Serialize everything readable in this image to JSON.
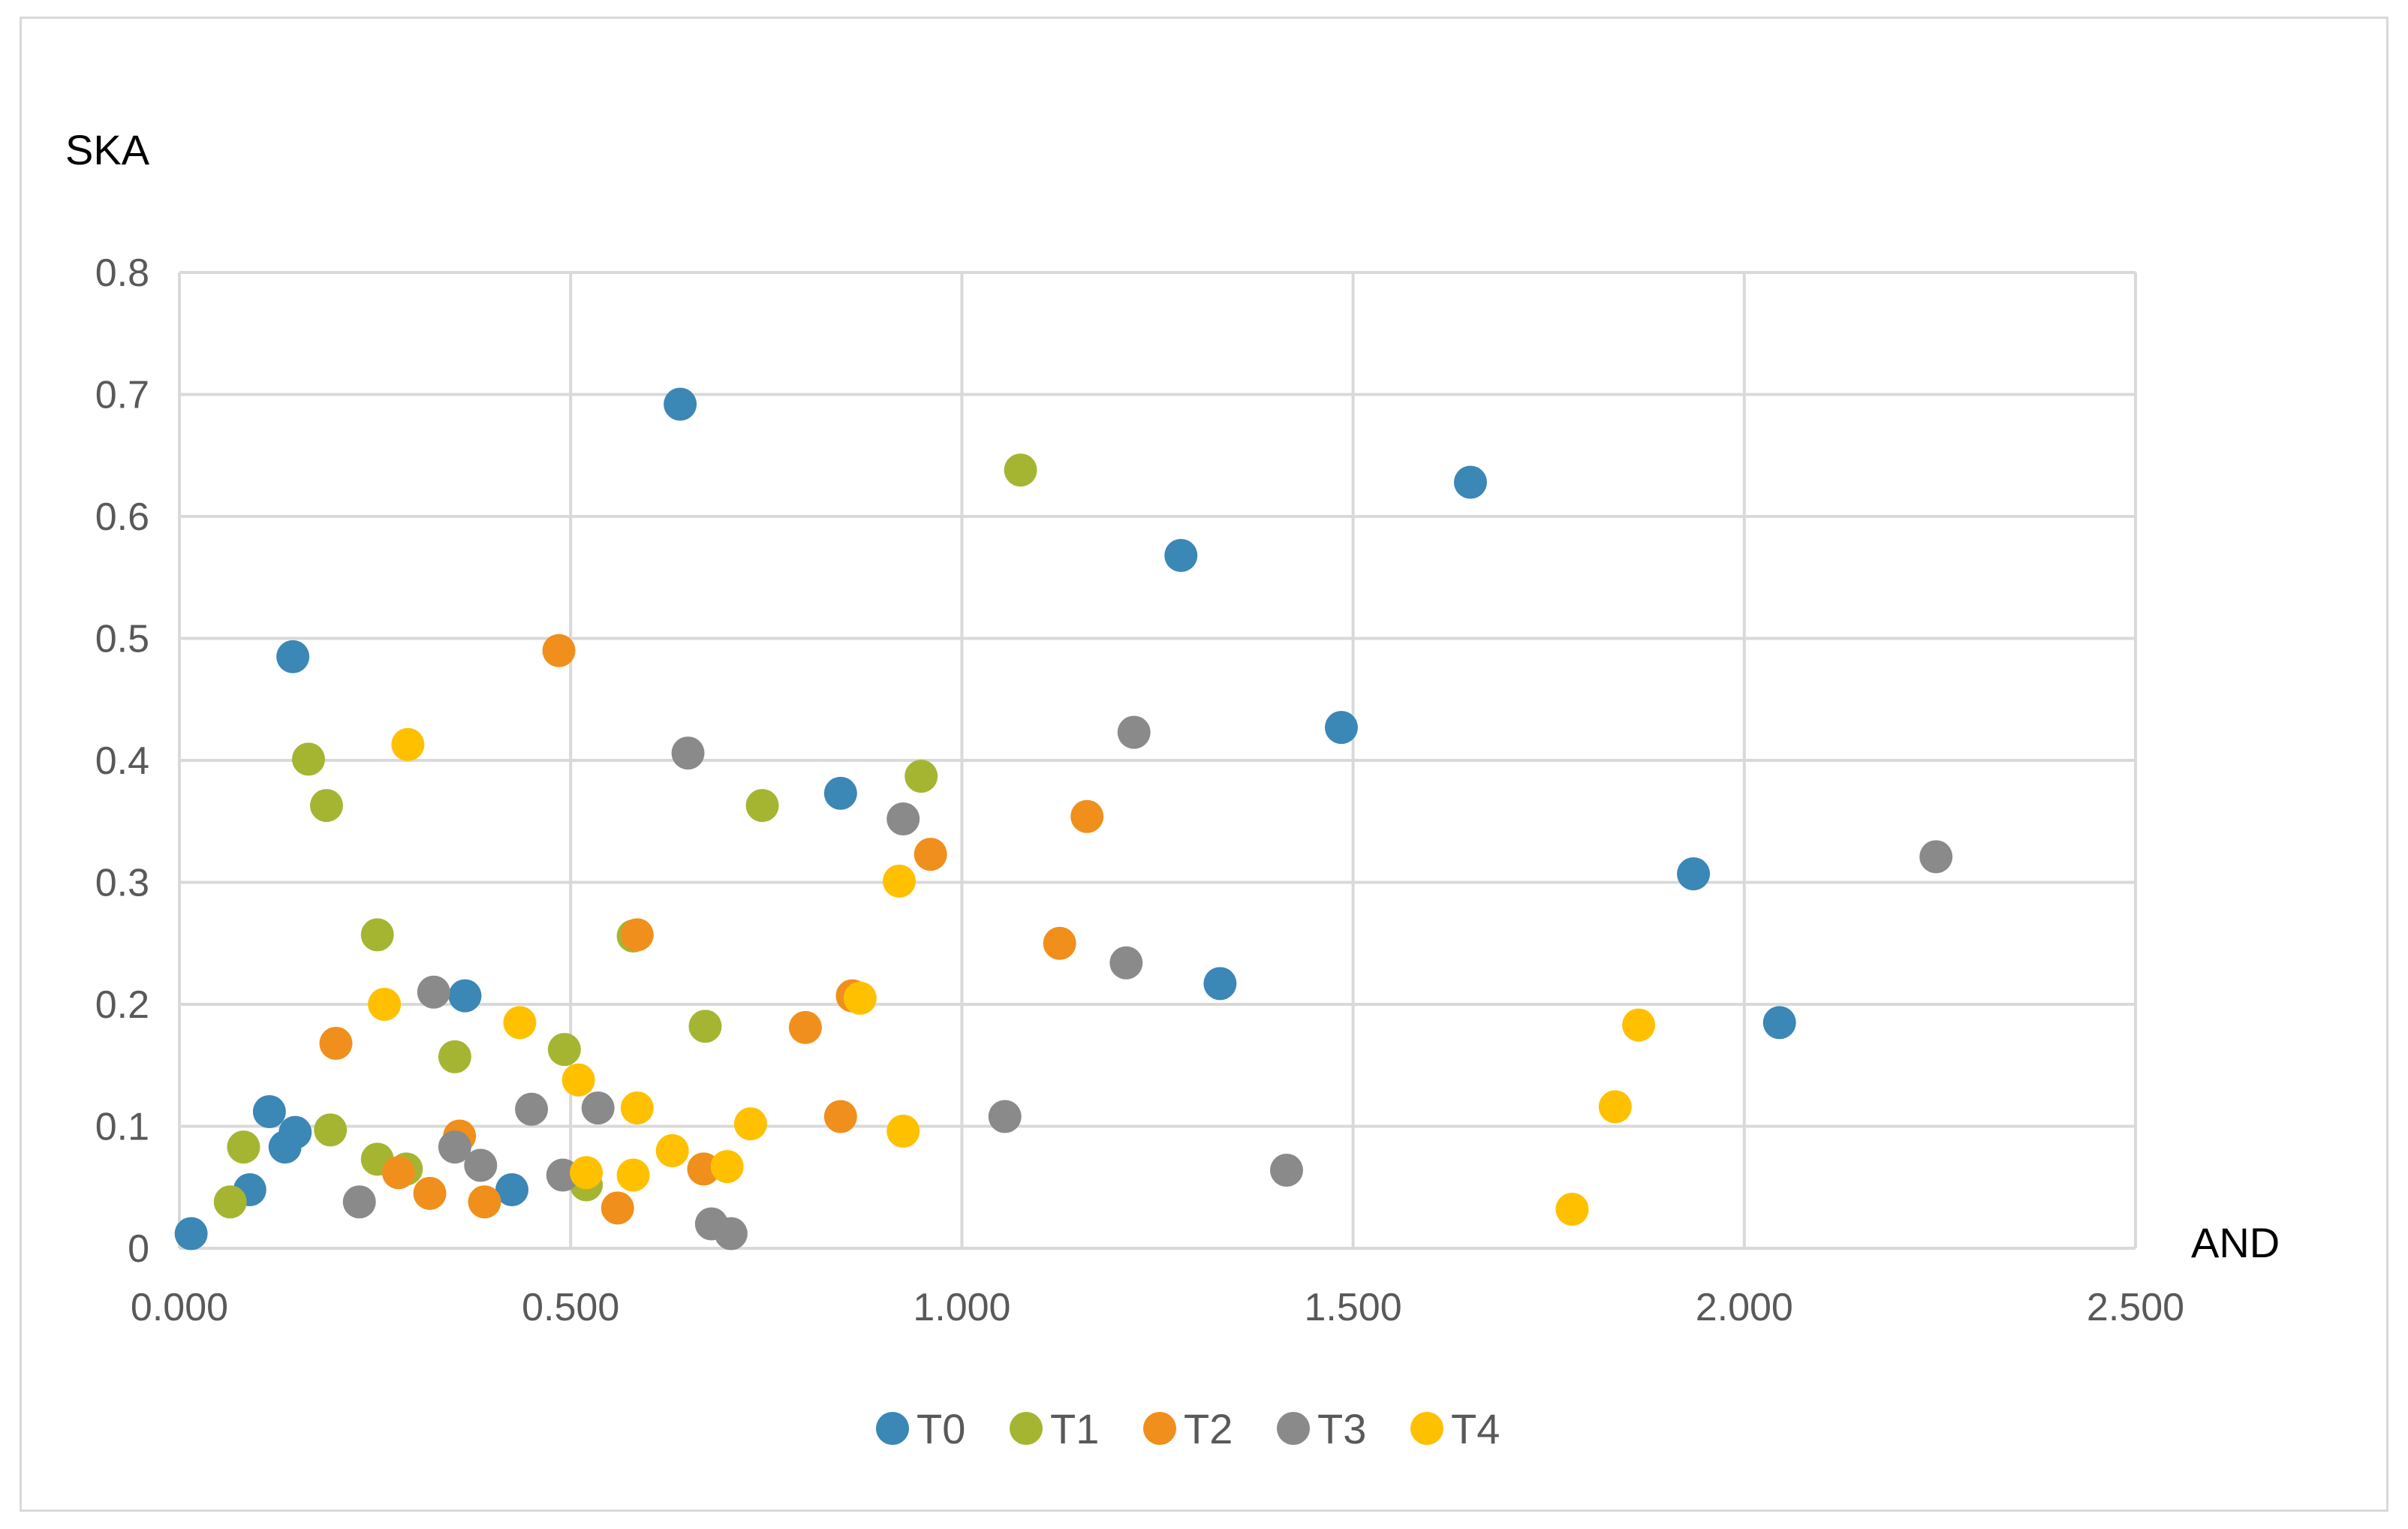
{
  "chart_data": {
    "type": "scatter",
    "title": "",
    "xlabel": "AND",
    "ylabel": "SKA",
    "xlim": [
      0,
      2.5
    ],
    "ylim": [
      0,
      0.8
    ],
    "x_ticks": [
      "0.000",
      "0.500",
      "1.000",
      "1.500",
      "2.000",
      "2.500"
    ],
    "y_ticks": [
      "0",
      "0.1",
      "0.2",
      "0.3",
      "0.4",
      "0.5",
      "0.6",
      "0.7",
      "0.8"
    ],
    "grid": true,
    "legend_position": "bottom",
    "series": [
      {
        "name": "T0",
        "color": "#3b87b6",
        "points": [
          [
            0.015,
            0.012
          ],
          [
            0.09,
            0.048
          ],
          [
            0.115,
            0.112
          ],
          [
            0.135,
            0.083
          ],
          [
            0.148,
            0.095
          ],
          [
            0.145,
            0.485
          ],
          [
            0.365,
            0.207
          ],
          [
            0.425,
            0.048
          ],
          [
            0.64,
            0.692
          ],
          [
            0.845,
            0.373
          ],
          [
            1.28,
            0.568
          ],
          [
            1.33,
            0.217
          ],
          [
            1.485,
            0.427
          ],
          [
            1.65,
            0.628
          ],
          [
            1.935,
            0.307
          ],
          [
            2.045,
            0.185
          ]
        ]
      },
      {
        "name": "T1",
        "color": "#a5b532",
        "points": [
          [
            0.065,
            0.038
          ],
          [
            0.082,
            0.083
          ],
          [
            0.165,
            0.401
          ],
          [
            0.188,
            0.363
          ],
          [
            0.193,
            0.097
          ],
          [
            0.253,
            0.257
          ],
          [
            0.253,
            0.073
          ],
          [
            0.29,
            0.065
          ],
          [
            0.352,
            0.157
          ],
          [
            0.492,
            0.163
          ],
          [
            0.52,
            0.052
          ],
          [
            0.58,
            0.256
          ],
          [
            0.672,
            0.182
          ],
          [
            0.745,
            0.363
          ],
          [
            0.948,
            0.387
          ],
          [
            1.075,
            0.638
          ]
        ]
      },
      {
        "name": "T2",
        "color": "#f08f1c",
        "points": [
          [
            0.2,
            0.168
          ],
          [
            0.28,
            0.062
          ],
          [
            0.32,
            0.045
          ],
          [
            0.358,
            0.092
          ],
          [
            0.39,
            0.038
          ],
          [
            0.485,
            0.49
          ],
          [
            0.56,
            0.033
          ],
          [
            0.585,
            0.257
          ],
          [
            0.67,
            0.065
          ],
          [
            0.8,
            0.181
          ],
          [
            0.845,
            0.108
          ],
          [
            0.86,
            0.207
          ],
          [
            0.96,
            0.323
          ],
          [
            1.125,
            0.25
          ],
          [
            1.16,
            0.354
          ]
        ]
      },
      {
        "name": "T3",
        "color": "#8a8a8a",
        "points": [
          [
            0.23,
            0.038
          ],
          [
            0.325,
            0.21
          ],
          [
            0.352,
            0.083
          ],
          [
            0.385,
            0.068
          ],
          [
            0.45,
            0.114
          ],
          [
            0.49,
            0.06
          ],
          [
            0.535,
            0.115
          ],
          [
            0.65,
            0.406
          ],
          [
            0.68,
            0.02
          ],
          [
            0.705,
            0.012
          ],
          [
            0.925,
            0.352
          ],
          [
            1.055,
            0.108
          ],
          [
            1.21,
            0.234
          ],
          [
            1.22,
            0.423
          ],
          [
            1.415,
            0.064
          ],
          [
            2.245,
            0.321
          ]
        ]
      },
      {
        "name": "T4",
        "color": "#ffc000",
        "points": [
          [
            0.262,
            0.2
          ],
          [
            0.292,
            0.413
          ],
          [
            0.435,
            0.185
          ],
          [
            0.51,
            0.138
          ],
          [
            0.52,
            0.062
          ],
          [
            0.58,
            0.06
          ],
          [
            0.585,
            0.115
          ],
          [
            0.63,
            0.08
          ],
          [
            0.7,
            0.067
          ],
          [
            0.73,
            0.102
          ],
          [
            0.87,
            0.205
          ],
          [
            0.92,
            0.301
          ],
          [
            0.925,
            0.096
          ],
          [
            1.78,
            0.032
          ],
          [
            1.835,
            0.116
          ],
          [
            1.865,
            0.183
          ]
        ]
      }
    ]
  }
}
